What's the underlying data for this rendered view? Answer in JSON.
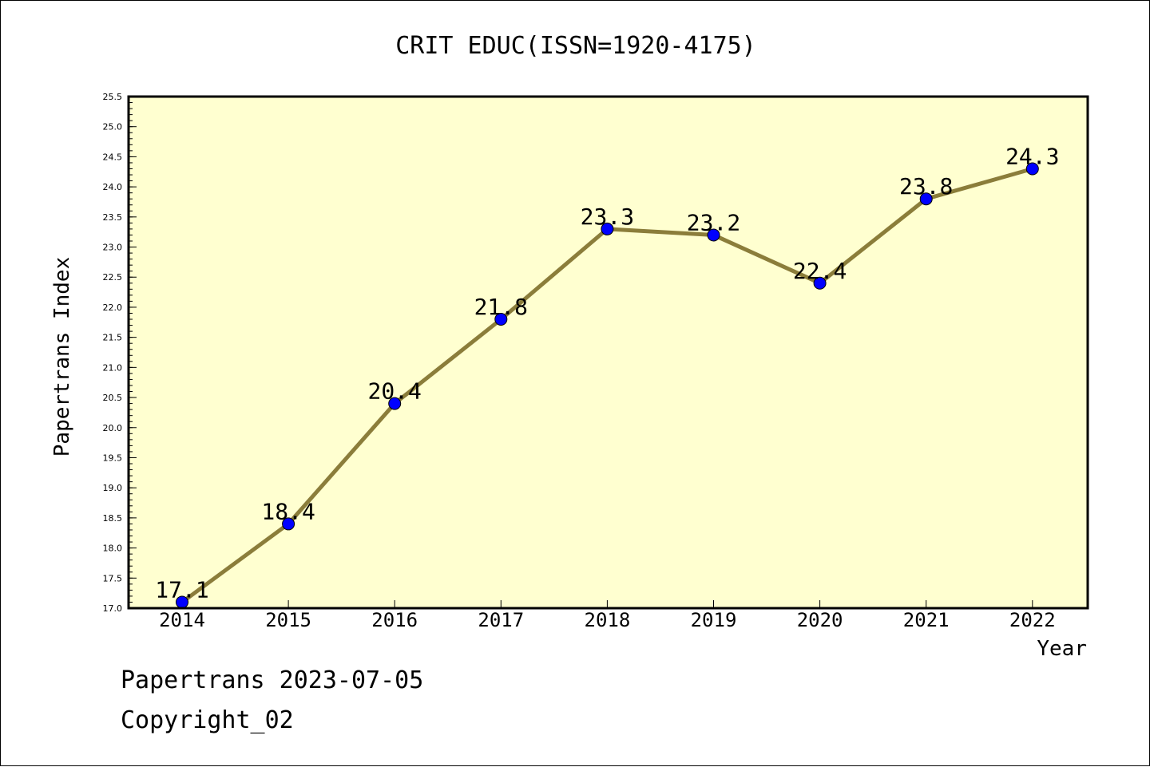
{
  "chart_data": {
    "type": "line",
    "title": "CRIT EDUC(ISSN=1920-4175)",
    "xlabel": "Year",
    "ylabel": "Papertrans Index",
    "categories": [
      "2014",
      "2015",
      "2016",
      "2017",
      "2018",
      "2019",
      "2020",
      "2021",
      "2022"
    ],
    "series": [
      {
        "values": [
          17.1,
          18.4,
          20.4,
          21.8,
          23.3,
          23.2,
          22.4,
          23.8,
          24.3
        ],
        "data_labels": [
          "17.1",
          "18.4",
          "20.4",
          "21.8",
          "23.3",
          "23.2",
          "22.4",
          "23.8",
          "24.3"
        ],
        "line_color": "#8b7d3a",
        "marker_color": "#0000ff"
      }
    ],
    "ylim": [
      17.0,
      25.5
    ],
    "yticks": [
      "17.0",
      "17.5",
      "18.0",
      "18.5",
      "19.0",
      "19.5",
      "20.0",
      "20.5",
      "21.0",
      "21.5",
      "22.0",
      "22.5",
      "23.0",
      "23.5",
      "24.0",
      "24.5",
      "25.0",
      "25.5"
    ],
    "plot_background": "#ffffd0",
    "grid": false
  },
  "footer": {
    "line1": "Papertrans 2023-07-05",
    "line2": "Copyright_02"
  }
}
